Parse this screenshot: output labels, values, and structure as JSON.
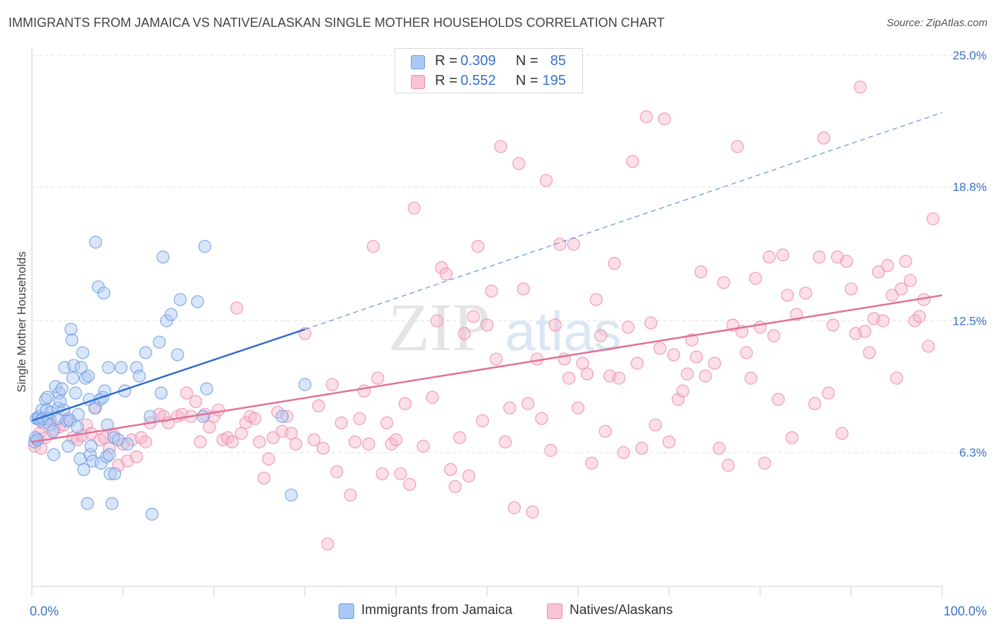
{
  "header": {
    "title": "IMMIGRANTS FROM JAMAICA VS NATIVE/ALASKAN SINGLE MOTHER HOUSEHOLDS CORRELATION CHART",
    "source": "Source: ZipAtlas.com"
  },
  "watermark": {
    "zip": "ZIP",
    "atlas": "atlas"
  },
  "legend": {
    "series1": {
      "r_label": "R =",
      "r_value": "0.309",
      "n_label": "N =",
      "n_value": "85"
    },
    "series2": {
      "r_label": "R =",
      "r_value": "0.552",
      "n_label": "N =",
      "n_value": "195"
    }
  },
  "colors": {
    "blue_fill": "#aac8f5",
    "blue_stroke": "#6d9ee0",
    "blue_line": "#2e6fd0",
    "pink_fill": "#f8b9cc",
    "pink_stroke": "#ec8fad",
    "pink_line": "#e0709a",
    "axis_text": "#3a72c8",
    "grid": "#e2e2e2"
  },
  "chart_data": {
    "type": "scatter",
    "title": "IMMIGRANTS FROM JAMAICA VS NATIVE/ALASKAN SINGLE MOTHER HOUSEHOLDS CORRELATION CHART",
    "xlabel": "",
    "ylabel": "Single Mother Households",
    "xlim": [
      0,
      100
    ],
    "ylim": [
      0,
      25.0
    ],
    "x_tick_labels": [
      "0.0%",
      "100.0%"
    ],
    "y_ticks": [
      6.3,
      12.5,
      18.8,
      25.0
    ],
    "y_tick_labels": [
      "6.3%",
      "12.5%",
      "18.8%",
      "25.0%"
    ],
    "grid": true,
    "series": [
      {
        "name": "Immigrants from Jamaica",
        "color": "blue",
        "r": 0.309,
        "n": 85,
        "trend": {
          "x": [
            0,
            30
          ],
          "y": [
            7.8,
            12.1
          ]
        },
        "trend_extension": {
          "x": [
            30,
            100
          ],
          "y": [
            12.1,
            22.3
          ]
        },
        "points": [
          [
            0.3,
            6.8
          ],
          [
            0.4,
            7.0
          ],
          [
            0.5,
            7.9
          ],
          [
            0.6,
            6.9
          ],
          [
            0.7,
            7.9
          ],
          [
            0.8,
            8.0
          ],
          [
            1.0,
            7.8
          ],
          [
            1.1,
            8.3
          ],
          [
            1.2,
            7.9
          ],
          [
            1.5,
            8.8
          ],
          [
            1.6,
            8.3
          ],
          [
            1.7,
            8.9
          ],
          [
            1.8,
            7.9
          ],
          [
            2.0,
            7.6
          ],
          [
            2.1,
            8.2
          ],
          [
            2.3,
            7.3
          ],
          [
            2.4,
            6.2
          ],
          [
            2.6,
            9.4
          ],
          [
            2.8,
            7.9
          ],
          [
            2.9,
            8.4
          ],
          [
            3.0,
            9.1
          ],
          [
            3.1,
            8.7
          ],
          [
            3.3,
            9.3
          ],
          [
            3.5,
            8.3
          ],
          [
            3.6,
            10.3
          ],
          [
            3.8,
            7.8
          ],
          [
            4.0,
            6.6
          ],
          [
            4.2,
            7.8
          ],
          [
            4.3,
            12.1
          ],
          [
            4.4,
            11.6
          ],
          [
            4.5,
            9.8
          ],
          [
            4.6,
            10.4
          ],
          [
            4.8,
            9.1
          ],
          [
            5.0,
            7.5
          ],
          [
            5.1,
            8.1
          ],
          [
            5.3,
            6.0
          ],
          [
            5.4,
            10.3
          ],
          [
            5.6,
            11.0
          ],
          [
            5.7,
            5.5
          ],
          [
            5.9,
            9.8
          ],
          [
            6.1,
            3.9
          ],
          [
            6.2,
            9.9
          ],
          [
            6.3,
            8.8
          ],
          [
            6.4,
            6.2
          ],
          [
            6.5,
            6.6
          ],
          [
            6.7,
            5.9
          ],
          [
            6.9,
            8.4
          ],
          [
            7.0,
            16.2
          ],
          [
            7.3,
            14.1
          ],
          [
            7.5,
            8.8
          ],
          [
            7.6,
            5.8
          ],
          [
            7.8,
            8.9
          ],
          [
            7.9,
            13.8
          ],
          [
            8.0,
            9.2
          ],
          [
            8.2,
            6.1
          ],
          [
            8.3,
            7.6
          ],
          [
            8.4,
            10.3
          ],
          [
            8.5,
            6.2
          ],
          [
            8.6,
            5.3
          ],
          [
            8.8,
            3.9
          ],
          [
            9.0,
            7.0
          ],
          [
            9.1,
            5.3
          ],
          [
            9.5,
            6.9
          ],
          [
            9.8,
            10.3
          ],
          [
            10.2,
            9.2
          ],
          [
            10.5,
            6.7
          ],
          [
            11.5,
            10.3
          ],
          [
            11.8,
            9.9
          ],
          [
            12.5,
            11.0
          ],
          [
            13.0,
            8.0
          ],
          [
            13.2,
            3.4
          ],
          [
            14.0,
            11.5
          ],
          [
            14.2,
            9.1
          ],
          [
            14.4,
            15.5
          ],
          [
            14.8,
            12.5
          ],
          [
            15.3,
            12.8
          ],
          [
            16.0,
            10.9
          ],
          [
            16.3,
            13.5
          ],
          [
            18.2,
            13.4
          ],
          [
            18.8,
            8.0
          ],
          [
            19.0,
            16.0
          ],
          [
            19.2,
            9.3
          ],
          [
            27.5,
            8.0
          ],
          [
            28.5,
            4.3
          ],
          [
            30.0,
            9.5
          ]
        ]
      },
      {
        "name": "Natives/Alaskans",
        "color": "pink",
        "r": 0.552,
        "n": 195,
        "trend": {
          "x": [
            0,
            100
          ],
          "y": [
            6.8,
            13.7
          ]
        },
        "points": [
          [
            0.3,
            6.6
          ],
          [
            0.6,
            6.9
          ],
          [
            0.8,
            7.2
          ],
          [
            1.0,
            6.5
          ],
          [
            1.2,
            7.7
          ],
          [
            1.5,
            7.0
          ],
          [
            2.0,
            7.9
          ],
          [
            2.5,
            7.4
          ],
          [
            3.0,
            7.5
          ],
          [
            3.5,
            7.6
          ],
          [
            4.0,
            7.9
          ],
          [
            4.5,
            7.0
          ],
          [
            5.0,
            6.9
          ],
          [
            5.5,
            7.1
          ],
          [
            6.0,
            7.6
          ],
          [
            6.5,
            7.2
          ],
          [
            7.0,
            8.4
          ],
          [
            7.5,
            6.9
          ],
          [
            8.0,
            7.0
          ],
          [
            8.5,
            6.5
          ],
          [
            9.0,
            7.1
          ],
          [
            9.5,
            5.7
          ],
          [
            10.0,
            6.7
          ],
          [
            10.5,
            5.9
          ],
          [
            11.0,
            6.9
          ],
          [
            11.5,
            6.1
          ],
          [
            12.0,
            7.0
          ],
          [
            12.5,
            6.8
          ],
          [
            13.0,
            7.7
          ],
          [
            14.0,
            8.1
          ],
          [
            14.5,
            8.0
          ],
          [
            15.0,
            7.7
          ],
          [
            16.0,
            8.0
          ],
          [
            16.5,
            8.1
          ],
          [
            17.0,
            9.1
          ],
          [
            17.5,
            8.0
          ],
          [
            18.0,
            8.7
          ],
          [
            18.5,
            6.8
          ],
          [
            19.0,
            8.1
          ],
          [
            19.5,
            7.5
          ],
          [
            20.0,
            8.0
          ],
          [
            20.5,
            8.3
          ],
          [
            21.0,
            6.9
          ],
          [
            21.5,
            7.0
          ],
          [
            22.0,
            6.8
          ],
          [
            22.5,
            13.1
          ],
          [
            23.0,
            7.2
          ],
          [
            23.5,
            7.7
          ],
          [
            24.0,
            8.0
          ],
          [
            24.5,
            7.9
          ],
          [
            25.0,
            6.8
          ],
          [
            25.5,
            5.1
          ],
          [
            26.0,
            6.0
          ],
          [
            26.5,
            7.0
          ],
          [
            27.0,
            8.2
          ],
          [
            27.5,
            7.3
          ],
          [
            28.0,
            8.0
          ],
          [
            28.5,
            7.2
          ],
          [
            29.0,
            6.7
          ],
          [
            30.0,
            11.9
          ],
          [
            31.0,
            6.9
          ],
          [
            31.5,
            8.5
          ],
          [
            32.0,
            6.5
          ],
          [
            32.5,
            2.0
          ],
          [
            33.0,
            9.5
          ],
          [
            33.5,
            5.4
          ],
          [
            34.0,
            7.7
          ],
          [
            35.0,
            4.3
          ],
          [
            35.5,
            6.8
          ],
          [
            36.0,
            7.9
          ],
          [
            36.5,
            9.2
          ],
          [
            37.0,
            6.7
          ],
          [
            37.5,
            16.0
          ],
          [
            38.0,
            9.8
          ],
          [
            38.5,
            5.3
          ],
          [
            39.0,
            7.7
          ],
          [
            39.5,
            6.7
          ],
          [
            40.0,
            6.9
          ],
          [
            40.5,
            5.3
          ],
          [
            41.0,
            8.6
          ],
          [
            41.5,
            4.8
          ],
          [
            42.0,
            17.8
          ],
          [
            43.0,
            6.6
          ],
          [
            44.0,
            8.9
          ],
          [
            44.5,
            12.5
          ],
          [
            45.0,
            15.0
          ],
          [
            45.5,
            14.7
          ],
          [
            46.0,
            5.5
          ],
          [
            46.5,
            4.7
          ],
          [
            47.0,
            7.0
          ],
          [
            47.5,
            11.9
          ],
          [
            48.0,
            5.2
          ],
          [
            48.5,
            12.7
          ],
          [
            49.0,
            16.0
          ],
          [
            49.5,
            7.8
          ],
          [
            50.0,
            12.3
          ],
          [
            50.5,
            13.9
          ],
          [
            51.0,
            10.7
          ],
          [
            51.5,
            20.7
          ],
          [
            52.0,
            6.8
          ],
          [
            52.5,
            8.4
          ],
          [
            53.0,
            3.7
          ],
          [
            53.5,
            19.9
          ],
          [
            54.0,
            14.0
          ],
          [
            54.5,
            8.6
          ],
          [
            55.0,
            3.5
          ],
          [
            55.5,
            10.7
          ],
          [
            56.0,
            7.9
          ],
          [
            56.5,
            19.1
          ],
          [
            57.0,
            6.4
          ],
          [
            57.5,
            12.3
          ],
          [
            58.0,
            16.1
          ],
          [
            58.5,
            10.7
          ],
          [
            59.0,
            9.8
          ],
          [
            59.5,
            16.1
          ],
          [
            60.0,
            8.4
          ],
          [
            60.5,
            10.5
          ],
          [
            61.0,
            10.0
          ],
          [
            61.5,
            5.8
          ],
          [
            62.0,
            13.5
          ],
          [
            62.5,
            11.8
          ],
          [
            63.0,
            7.3
          ],
          [
            63.5,
            9.9
          ],
          [
            64.0,
            15.2
          ],
          [
            64.5,
            9.8
          ],
          [
            65.0,
            6.3
          ],
          [
            65.5,
            12.2
          ],
          [
            66.0,
            20.0
          ],
          [
            66.5,
            10.5
          ],
          [
            67.0,
            6.5
          ],
          [
            67.5,
            22.1
          ],
          [
            68.0,
            12.4
          ],
          [
            68.5,
            7.6
          ],
          [
            69.0,
            11.2
          ],
          [
            69.5,
            22.0
          ],
          [
            70.0,
            6.8
          ],
          [
            70.5,
            10.9
          ],
          [
            71.0,
            8.8
          ],
          [
            71.5,
            9.2
          ],
          [
            72.0,
            10.0
          ],
          [
            72.5,
            11.6
          ],
          [
            73.0,
            10.8
          ],
          [
            73.5,
            14.8
          ],
          [
            74.0,
            9.9
          ],
          [
            75.0,
            10.5
          ],
          [
            75.5,
            6.5
          ],
          [
            76.0,
            14.3
          ],
          [
            76.5,
            5.7
          ],
          [
            77.0,
            12.3
          ],
          [
            77.5,
            20.7
          ],
          [
            78.0,
            12.0
          ],
          [
            78.5,
            11.0
          ],
          [
            79.0,
            9.8
          ],
          [
            79.5,
            14.5
          ],
          [
            80.0,
            12.2
          ],
          [
            80.5,
            5.8
          ],
          [
            81.0,
            15.5
          ],
          [
            81.5,
            11.8
          ],
          [
            82.0,
            8.8
          ],
          [
            82.5,
            15.6
          ],
          [
            83.0,
            13.7
          ],
          [
            83.5,
            7.0
          ],
          [
            84.0,
            12.8
          ],
          [
            85.0,
            13.8
          ],
          [
            86.0,
            8.6
          ],
          [
            86.5,
            15.5
          ],
          [
            87.0,
            21.1
          ],
          [
            87.5,
            9.1
          ],
          [
            88.0,
            12.3
          ],
          [
            88.5,
            15.5
          ],
          [
            89.0,
            7.2
          ],
          [
            89.5,
            15.3
          ],
          [
            90.0,
            14.0
          ],
          [
            90.5,
            11.9
          ],
          [
            91.0,
            23.5
          ],
          [
            91.5,
            12.0
          ],
          [
            92.0,
            11.0
          ],
          [
            92.5,
            12.6
          ],
          [
            93.0,
            14.8
          ],
          [
            93.5,
            12.5
          ],
          [
            94.0,
            15.1
          ],
          [
            94.5,
            13.7
          ],
          [
            95.0,
            9.8
          ],
          [
            95.5,
            14.0
          ],
          [
            96.0,
            15.3
          ],
          [
            96.5,
            14.4
          ],
          [
            97.0,
            12.5
          ],
          [
            97.5,
            12.7
          ],
          [
            98.0,
            13.5
          ],
          [
            98.5,
            11.3
          ],
          [
            99.0,
            17.3
          ]
        ]
      }
    ]
  },
  "bottom_legend": {
    "item1": "Immigrants from Jamaica",
    "item2": "Natives/Alaskans"
  }
}
